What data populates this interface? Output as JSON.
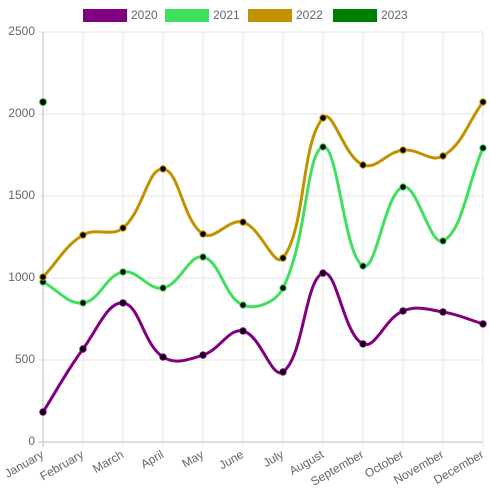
{
  "chart_data": {
    "type": "line",
    "categories": [
      "January",
      "February",
      "March",
      "April",
      "May",
      "June",
      "July",
      "August",
      "September",
      "October",
      "November",
      "December"
    ],
    "series": [
      {
        "name": "2020",
        "color": "#800080",
        "values": [
          183,
          567,
          848,
          518,
          530,
          677,
          427,
          1030,
          598,
          799,
          793,
          720
        ]
      },
      {
        "name": "2021",
        "color": "#3ee05e",
        "values": [
          976,
          848,
          1037,
          939,
          1128,
          835,
          939,
          1799,
          1073,
          1555,
          1226,
          1793
        ]
      },
      {
        "name": "2022",
        "color": "#c29100",
        "values": [
          1006,
          1262,
          1305,
          1665,
          1268,
          1341,
          1122,
          1976,
          1689,
          1780,
          1744,
          2073
        ]
      },
      {
        "name": "2023",
        "color": "#008000",
        "values": [
          2073,
          null,
          null,
          null,
          null,
          null,
          null,
          null,
          null,
          null,
          null,
          null
        ]
      }
    ],
    "ylim": [
      0,
      2500
    ],
    "yticks": [
      0,
      500,
      1000,
      1500,
      2000,
      2500
    ],
    "grid": true,
    "legend": "top"
  }
}
